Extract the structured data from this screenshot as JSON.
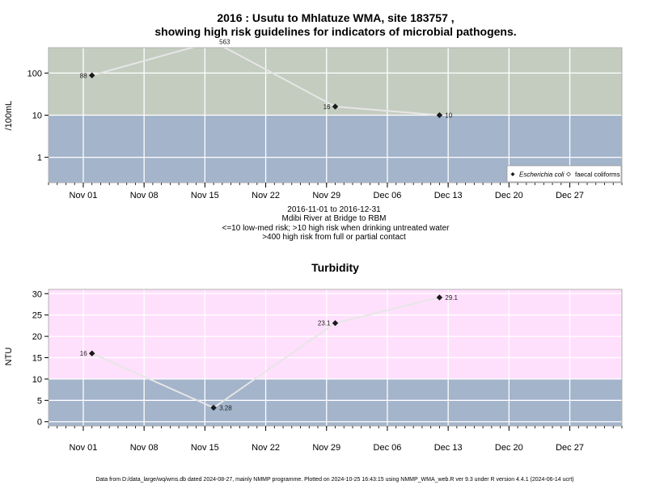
{
  "figure": {
    "title_line1": "2016 : Usutu to Mhlatuze WMA, site 183757 ,",
    "title_line2": "showing high risk guidelines for indicators of microbial pathogens.",
    "subtitle_lines": [
      "2016-11-01 to 2016-12-31",
      "Mdibi River at Bridge to RBM",
      "<=10 low-med risk; >10 high risk when drinking untreated water",
      ">400 high risk from full or partial contact"
    ],
    "footer": "Data from D:/data_large/wq/wms.db dated 2024-08-27, mainly NMMP programme. Plotted on 2024-10-25 16:43:15 using NMMP_WMA_web.R ver 9.3 under R version 4.4.1 (2024-06-14 ucrt)"
  },
  "chart_data": [
    {
      "type": "scatter",
      "title": "",
      "ylabel": "/100mL",
      "yscale": "log",
      "xlim": [
        "2016-10-28",
        "2017-01-02"
      ],
      "ylim": [
        0.25,
        400
      ],
      "yticks": [
        1,
        10,
        100
      ],
      "ytick_labels": [
        "1",
        "10",
        "100"
      ],
      "xticks": [
        "2016-11-01",
        "2016-11-08",
        "2016-11-15",
        "2016-11-22",
        "2016-11-29",
        "2016-12-06",
        "2016-12-13",
        "2016-12-20",
        "2016-12-27"
      ],
      "xtick_labels": [
        "Nov 01",
        "Nov 08",
        "Nov 15",
        "Nov 22",
        "Nov 29",
        "Dec 06",
        "Dec 13",
        "Dec 20",
        "Dec 27"
      ],
      "bands": [
        {
          "from": 0.25,
          "to": 10,
          "color": "#a3b4cb"
        },
        {
          "from": 10,
          "to": 400,
          "color": "#c4ccc0"
        },
        {
          "from": 400,
          "to": 10000,
          "color": "#fff7c9"
        }
      ],
      "grid": true,
      "legend": {
        "position": "bottom-right",
        "entries": [
          "Escherichia coli",
          "faecal coliforms"
        ]
      },
      "series": [
        {
          "name": "Escherichia coli",
          "marker": "filled-diamond",
          "x": [
            "2016-11-02",
            "2016-11-16",
            "2016-11-30",
            "2016-12-12"
          ],
          "y": [
            88,
            563,
            16,
            10
          ],
          "labels": [
            "88",
            "563",
            "16",
            "10"
          ]
        }
      ]
    },
    {
      "type": "scatter",
      "title": "Turbidity",
      "ylabel": "NTU",
      "yscale": "linear",
      "xlim": [
        "2016-10-28",
        "2017-01-02"
      ],
      "ylim": [
        -1,
        31
      ],
      "yticks": [
        0,
        5,
        10,
        15,
        20,
        25,
        30
      ],
      "ytick_labels": [
        "0",
        "5",
        "10",
        "15",
        "20",
        "25",
        "30"
      ],
      "xticks": [
        "2016-11-01",
        "2016-11-08",
        "2016-11-15",
        "2016-11-22",
        "2016-11-29",
        "2016-12-06",
        "2016-12-13",
        "2016-12-20",
        "2016-12-27"
      ],
      "xtick_labels": [
        "Nov 01",
        "Nov 08",
        "Nov 15",
        "Nov 22",
        "Nov 29",
        "Dec 06",
        "Dec 13",
        "Dec 20",
        "Dec 27"
      ],
      "bands": [
        {
          "from": -1,
          "to": 10,
          "color": "#a3b4cb"
        },
        {
          "from": 10,
          "to": 31,
          "color": "#ffe0fc"
        }
      ],
      "grid": true,
      "series": [
        {
          "name": "",
          "marker": "filled-diamond",
          "x": [
            "2016-11-02",
            "2016-11-16",
            "2016-11-30",
            "2016-12-12"
          ],
          "y": [
            16,
            3.28,
            23.1,
            29.1
          ],
          "labels": [
            "16",
            "3.28",
            "23.1",
            "29.1"
          ]
        }
      ]
    }
  ]
}
